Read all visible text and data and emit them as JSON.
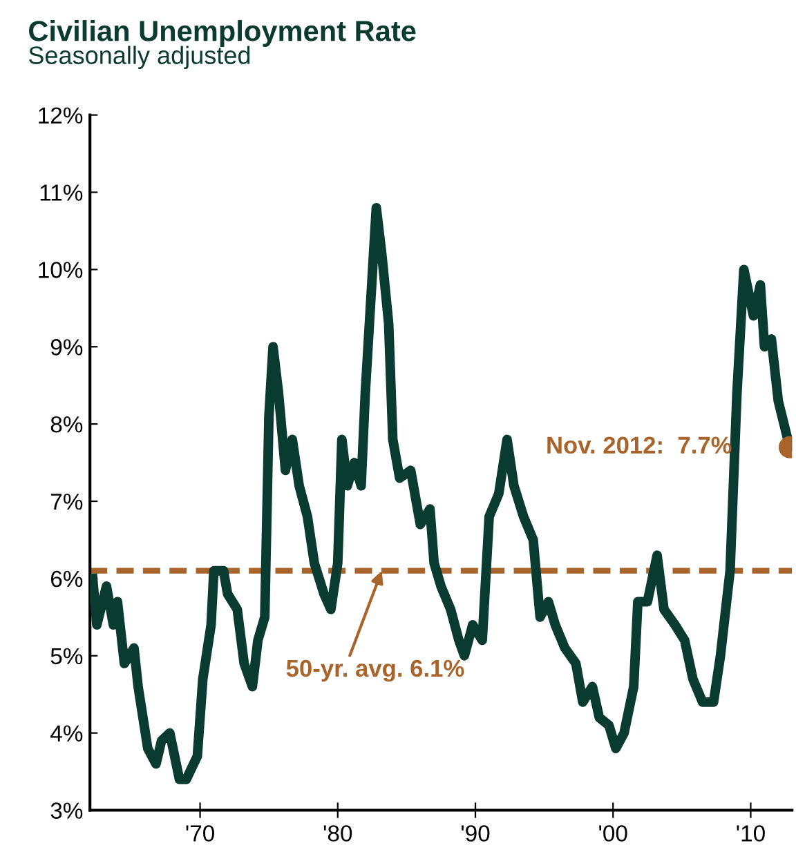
{
  "chart_data": {
    "type": "line",
    "title": "Civilian Unemployment Rate",
    "subtitle": "Seasonally adjusted",
    "series": [
      {
        "color": "#0a3b30",
        "x": [
          1962.2,
          1962.5,
          1963.2,
          1963.7,
          1964.0,
          1964.5,
          1965.2,
          1965.5,
          1966.2,
          1966.8,
          1967.2,
          1967.8,
          1968.5,
          1969.0,
          1969.8,
          1970.2,
          1970.8,
          1971.0,
          1971.7,
          1972.0,
          1972.7,
          1973.2,
          1973.8,
          1974.2,
          1974.7,
          1975.0,
          1975.3,
          1975.7,
          1976.2,
          1976.7,
          1977.2,
          1977.8,
          1978.3,
          1979.0,
          1979.5,
          1980.0,
          1980.3,
          1980.7,
          1981.2,
          1981.7,
          1982.0,
          1982.3,
          1982.8,
          1983.2,
          1983.7,
          1984.0,
          1984.5,
          1985.3,
          1986.0,
          1986.7,
          1987.0,
          1987.5,
          1988.2,
          1988.8,
          1989.2,
          1989.8,
          1990.5,
          1991.0,
          1991.7,
          1992.3,
          1992.8,
          1993.5,
          1994.2,
          1994.7,
          1995.3,
          1995.8,
          1996.5,
          1997.3,
          1997.8,
          1998.5,
          1999.0,
          1999.7,
          2000.2,
          2000.8,
          2001.5,
          2001.8,
          2002.5,
          2003.2,
          2003.7,
          2004.5,
          2005.2,
          2005.8,
          2006.5,
          2007.3,
          2007.8,
          2008.5,
          2009.0,
          2009.5,
          2010.2,
          2010.7,
          2011.0,
          2011.5,
          2012.0,
          2012.83
        ],
        "values": [
          6.0,
          5.4,
          5.9,
          5.4,
          5.7,
          4.9,
          5.1,
          4.6,
          3.8,
          3.6,
          3.9,
          4.0,
          3.4,
          3.4,
          3.7,
          4.7,
          5.4,
          6.1,
          6.1,
          5.8,
          5.6,
          4.9,
          4.6,
          5.2,
          5.5,
          8.1,
          9.0,
          8.4,
          7.4,
          7.8,
          7.2,
          6.8,
          6.2,
          5.8,
          5.6,
          6.2,
          7.8,
          7.2,
          7.5,
          7.2,
          8.4,
          9.3,
          10.8,
          10.2,
          9.3,
          7.8,
          7.3,
          7.4,
          6.7,
          6.9,
          6.2,
          5.9,
          5.6,
          5.2,
          5.0,
          5.4,
          5.2,
          6.8,
          7.1,
          7.8,
          7.2,
          6.8,
          6.5,
          5.5,
          5.7,
          5.4,
          5.1,
          4.9,
          4.4,
          4.6,
          4.2,
          4.1,
          3.8,
          4.0,
          4.6,
          5.7,
          5.7,
          6.3,
          5.6,
          5.4,
          5.2,
          4.7,
          4.4,
          4.4,
          5.0,
          6.1,
          8.4,
          10.0,
          9.4,
          9.8,
          9.0,
          9.1,
          8.3,
          7.7
        ]
      },
      {
        "type": "scatter",
        "marker": "circle",
        "color": "#a8642a",
        "x": [
          2012.83
        ],
        "values": [
          7.7
        ]
      }
    ],
    "annotations": [
      {
        "text": "Nov. 2012:  7.7%",
        "x": 2012.83,
        "y": 7.7
      },
      {
        "text": "50-yr. avg. 6.1%",
        "x": 1983.2,
        "y": 6.1
      }
    ],
    "ref_lines": [
      {
        "axis": "y",
        "value": 6.1,
        "color": "#a8642a",
        "line_style": "dashed"
      }
    ],
    "xlim": [
      1962,
      2013
    ],
    "xticks": [
      {
        "value": 1970,
        "label": "'70"
      },
      {
        "value": 1980,
        "label": "'80"
      },
      {
        "value": 1990,
        "label": "'90"
      },
      {
        "value": 2000,
        "label": "'00"
      },
      {
        "value": 2010,
        "label": "'10"
      }
    ],
    "ylim": [
      3,
      12
    ],
    "yticks": [
      {
        "value": 3,
        "label": "3%"
      },
      {
        "value": 4,
        "label": "4%"
      },
      {
        "value": 5,
        "label": "5%"
      },
      {
        "value": 6,
        "label": "6%"
      },
      {
        "value": 7,
        "label": "7%"
      },
      {
        "value": 8,
        "label": "8%"
      },
      {
        "value": 9,
        "label": "9%"
      },
      {
        "value": 10,
        "label": "10%"
      },
      {
        "value": 11,
        "label": "11%"
      },
      {
        "value": 12,
        "label": "12%"
      }
    ],
    "grid": false,
    "legend": false,
    "marker": "none",
    "line_style": "solid"
  }
}
